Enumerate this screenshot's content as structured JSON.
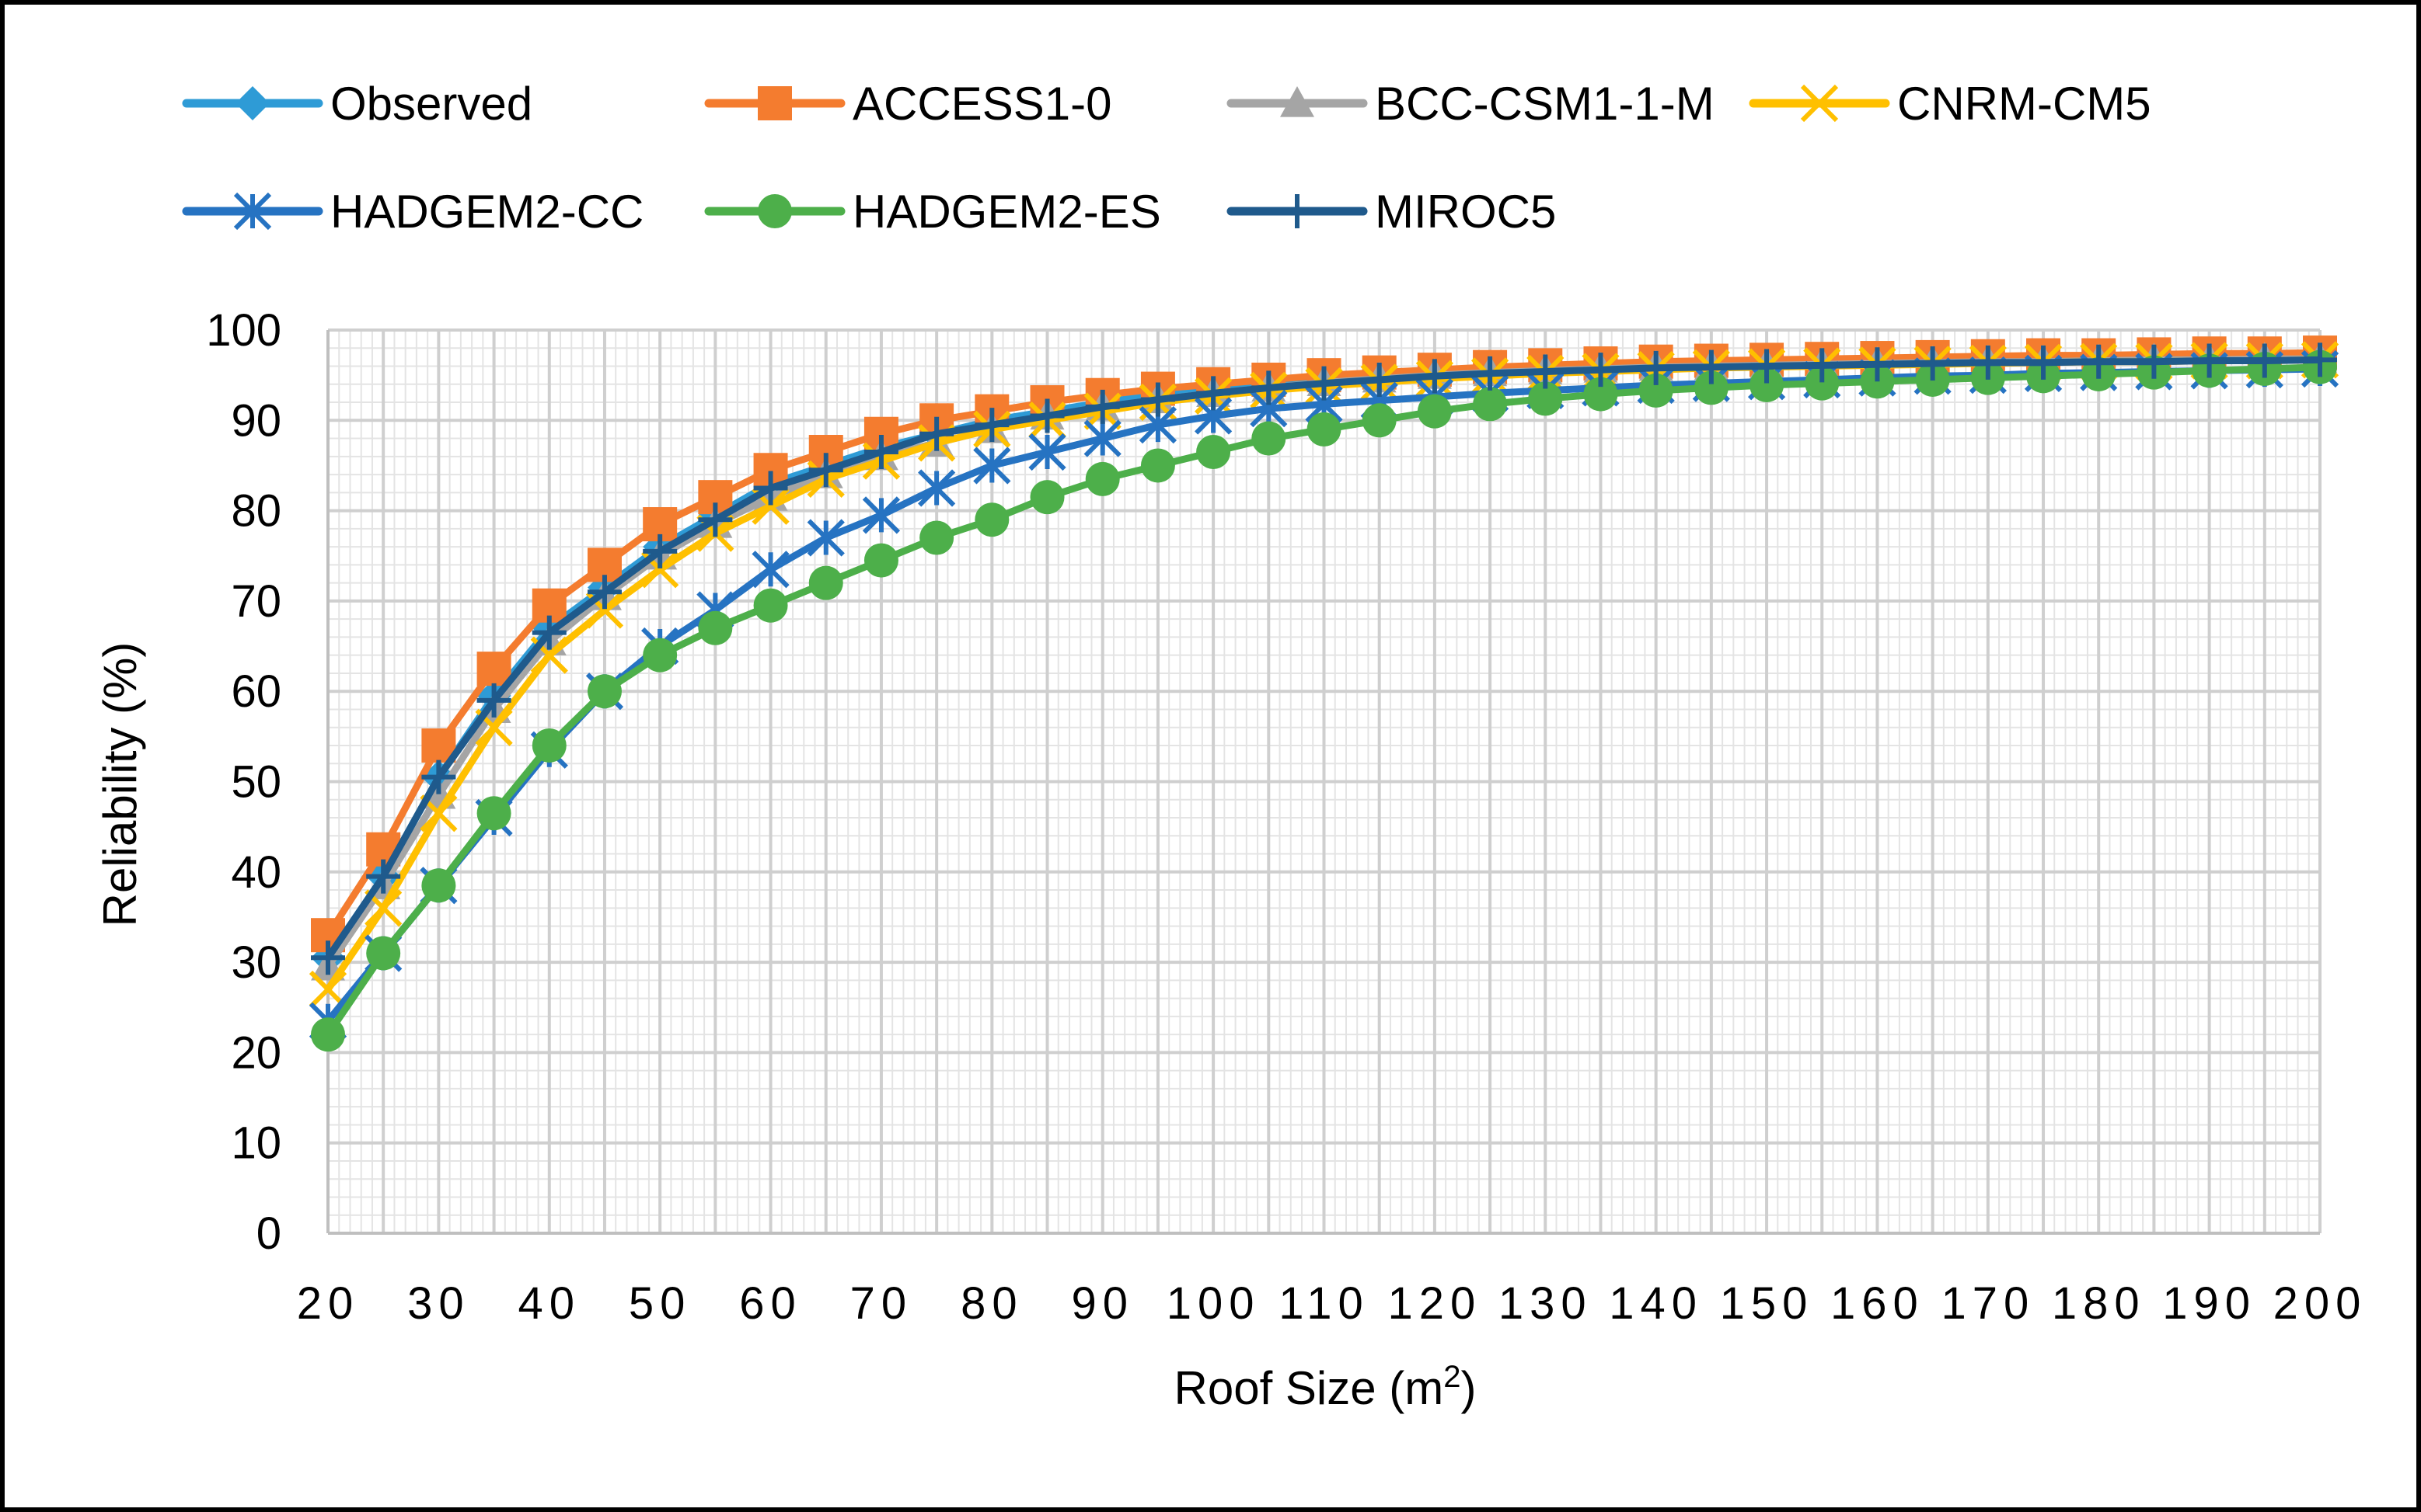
{
  "chart_data": {
    "type": "line",
    "title": "",
    "xlabel": "Roof Size (m",
    "xlabel_sup": "2",
    "xlabel_close": ")",
    "ylabel": "Reliability (%)",
    "xlim": [
      20,
      200
    ],
    "ylim": [
      0,
      100
    ],
    "x_ticks": [
      20,
      30,
      40,
      50,
      60,
      70,
      80,
      90,
      100,
      110,
      120,
      130,
      140,
      150,
      160,
      170,
      180,
      190,
      200
    ],
    "y_ticks": [
      0,
      10,
      20,
      30,
      40,
      50,
      60,
      70,
      80,
      90,
      100
    ],
    "x": [
      20,
      25,
      30,
      35,
      40,
      45,
      50,
      55,
      60,
      65,
      70,
      75,
      80,
      85,
      90,
      95,
      100,
      105,
      110,
      115,
      120,
      125,
      130,
      135,
      140,
      145,
      150,
      155,
      160,
      165,
      170,
      175,
      180,
      185,
      190,
      195,
      200
    ],
    "grid": true,
    "legend_position": "top",
    "series": [
      {
        "name": "Observed",
        "color": "#2E9BD6",
        "marker": "diamond",
        "values": [
          30.5,
          39.5,
          50.5,
          59.5,
          67,
          71.5,
          76,
          79.5,
          83,
          85,
          87,
          88.5,
          90,
          91,
          92,
          92.8,
          93.5,
          94,
          94.5,
          95,
          95.3,
          95.5,
          95.8,
          96,
          96.2,
          96.3,
          96.5,
          96.6,
          96.7,
          96.8,
          96.9,
          97,
          97,
          97.1,
          97.2,
          97.2,
          97.3
        ]
      },
      {
        "name": "ACCESS1-0",
        "color": "#F47C2F",
        "marker": "square",
        "values": [
          33,
          42.5,
          54,
          62.5,
          69.5,
          74,
          78.5,
          81.5,
          84.5,
          86.5,
          88.5,
          90,
          91,
          92,
          92.8,
          93.5,
          94,
          94.5,
          95,
          95.3,
          95.6,
          95.9,
          96.1,
          96.3,
          96.5,
          96.6,
          96.7,
          96.8,
          96.9,
          97,
          97.1,
          97.2,
          97.2,
          97.3,
          97.4,
          97.4,
          97.5
        ]
      },
      {
        "name": "BCC-CSM1-1-M",
        "color": "#A5A5A5",
        "marker": "triangle",
        "values": [
          29.5,
          38.5,
          48.5,
          58,
          65.5,
          70.5,
          75,
          78.5,
          81.5,
          84,
          86,
          87.5,
          89,
          90.5,
          91.5,
          92.3,
          93,
          93.6,
          94.2,
          94.6,
          95,
          95.3,
          95.5,
          95.7,
          95.9,
          96,
          96.1,
          96.2,
          96.3,
          96.4,
          96.5,
          96.5,
          96.6,
          96.7,
          96.7,
          96.8,
          96.8
        ]
      },
      {
        "name": "CNRM-CM5",
        "color": "#FFC000",
        "marker": "x",
        "values": [
          27,
          36,
          46.5,
          56,
          64,
          69,
          73.5,
          77.5,
          80.5,
          83.5,
          85.5,
          87.5,
          89,
          90,
          91,
          92,
          92.7,
          93.3,
          93.8,
          94.2,
          94.6,
          94.9,
          95.2,
          95.4,
          95.6,
          95.8,
          95.9,
          96,
          96.1,
          96.2,
          96.3,
          96.4,
          96.5,
          96.5,
          96.6,
          96.6,
          96.7
        ]
      },
      {
        "name": "HADGEM2-CC",
        "color": "#2673C2",
        "marker": "asterisk",
        "values": [
          23.5,
          31,
          38.5,
          46,
          53.5,
          60,
          65,
          69,
          73.5,
          77,
          79.5,
          82.5,
          85,
          86.5,
          88,
          89.5,
          90.5,
          91.3,
          91.8,
          92.2,
          92.6,
          93,
          93.3,
          93.6,
          93.9,
          94.1,
          94.3,
          94.5,
          94.7,
          94.9,
          95,
          95.2,
          95.3,
          95.4,
          95.5,
          95.6,
          95.7
        ]
      },
      {
        "name": "HADGEM2-ES",
        "color": "#4DAF4A",
        "marker": "circle",
        "values": [
          22,
          31,
          38.5,
          46.5,
          54,
          60,
          64,
          67,
          69.5,
          72,
          74.5,
          77,
          79,
          81.5,
          83.5,
          85,
          86.5,
          88,
          89,
          90,
          91,
          91.8,
          92.4,
          92.9,
          93.3,
          93.6,
          93.9,
          94.1,
          94.3,
          94.5,
          94.7,
          94.9,
          95.1,
          95.3,
          95.5,
          95.7,
          95.9
        ]
      },
      {
        "name": "MIROC5",
        "color": "#1F5A8C",
        "marker": "plus",
        "values": [
          30.5,
          39.5,
          50.5,
          59,
          66.5,
          71,
          75.5,
          79,
          82.5,
          84.5,
          86.5,
          88.5,
          89.5,
          90.5,
          91.5,
          92.3,
          93,
          93.6,
          94.1,
          94.5,
          94.9,
          95.2,
          95.4,
          95.6,
          95.8,
          95.9,
          96,
          96.1,
          96.2,
          96.3,
          96.4,
          96.4,
          96.5,
          96.5,
          96.6,
          96.6,
          96.7
        ]
      }
    ]
  }
}
